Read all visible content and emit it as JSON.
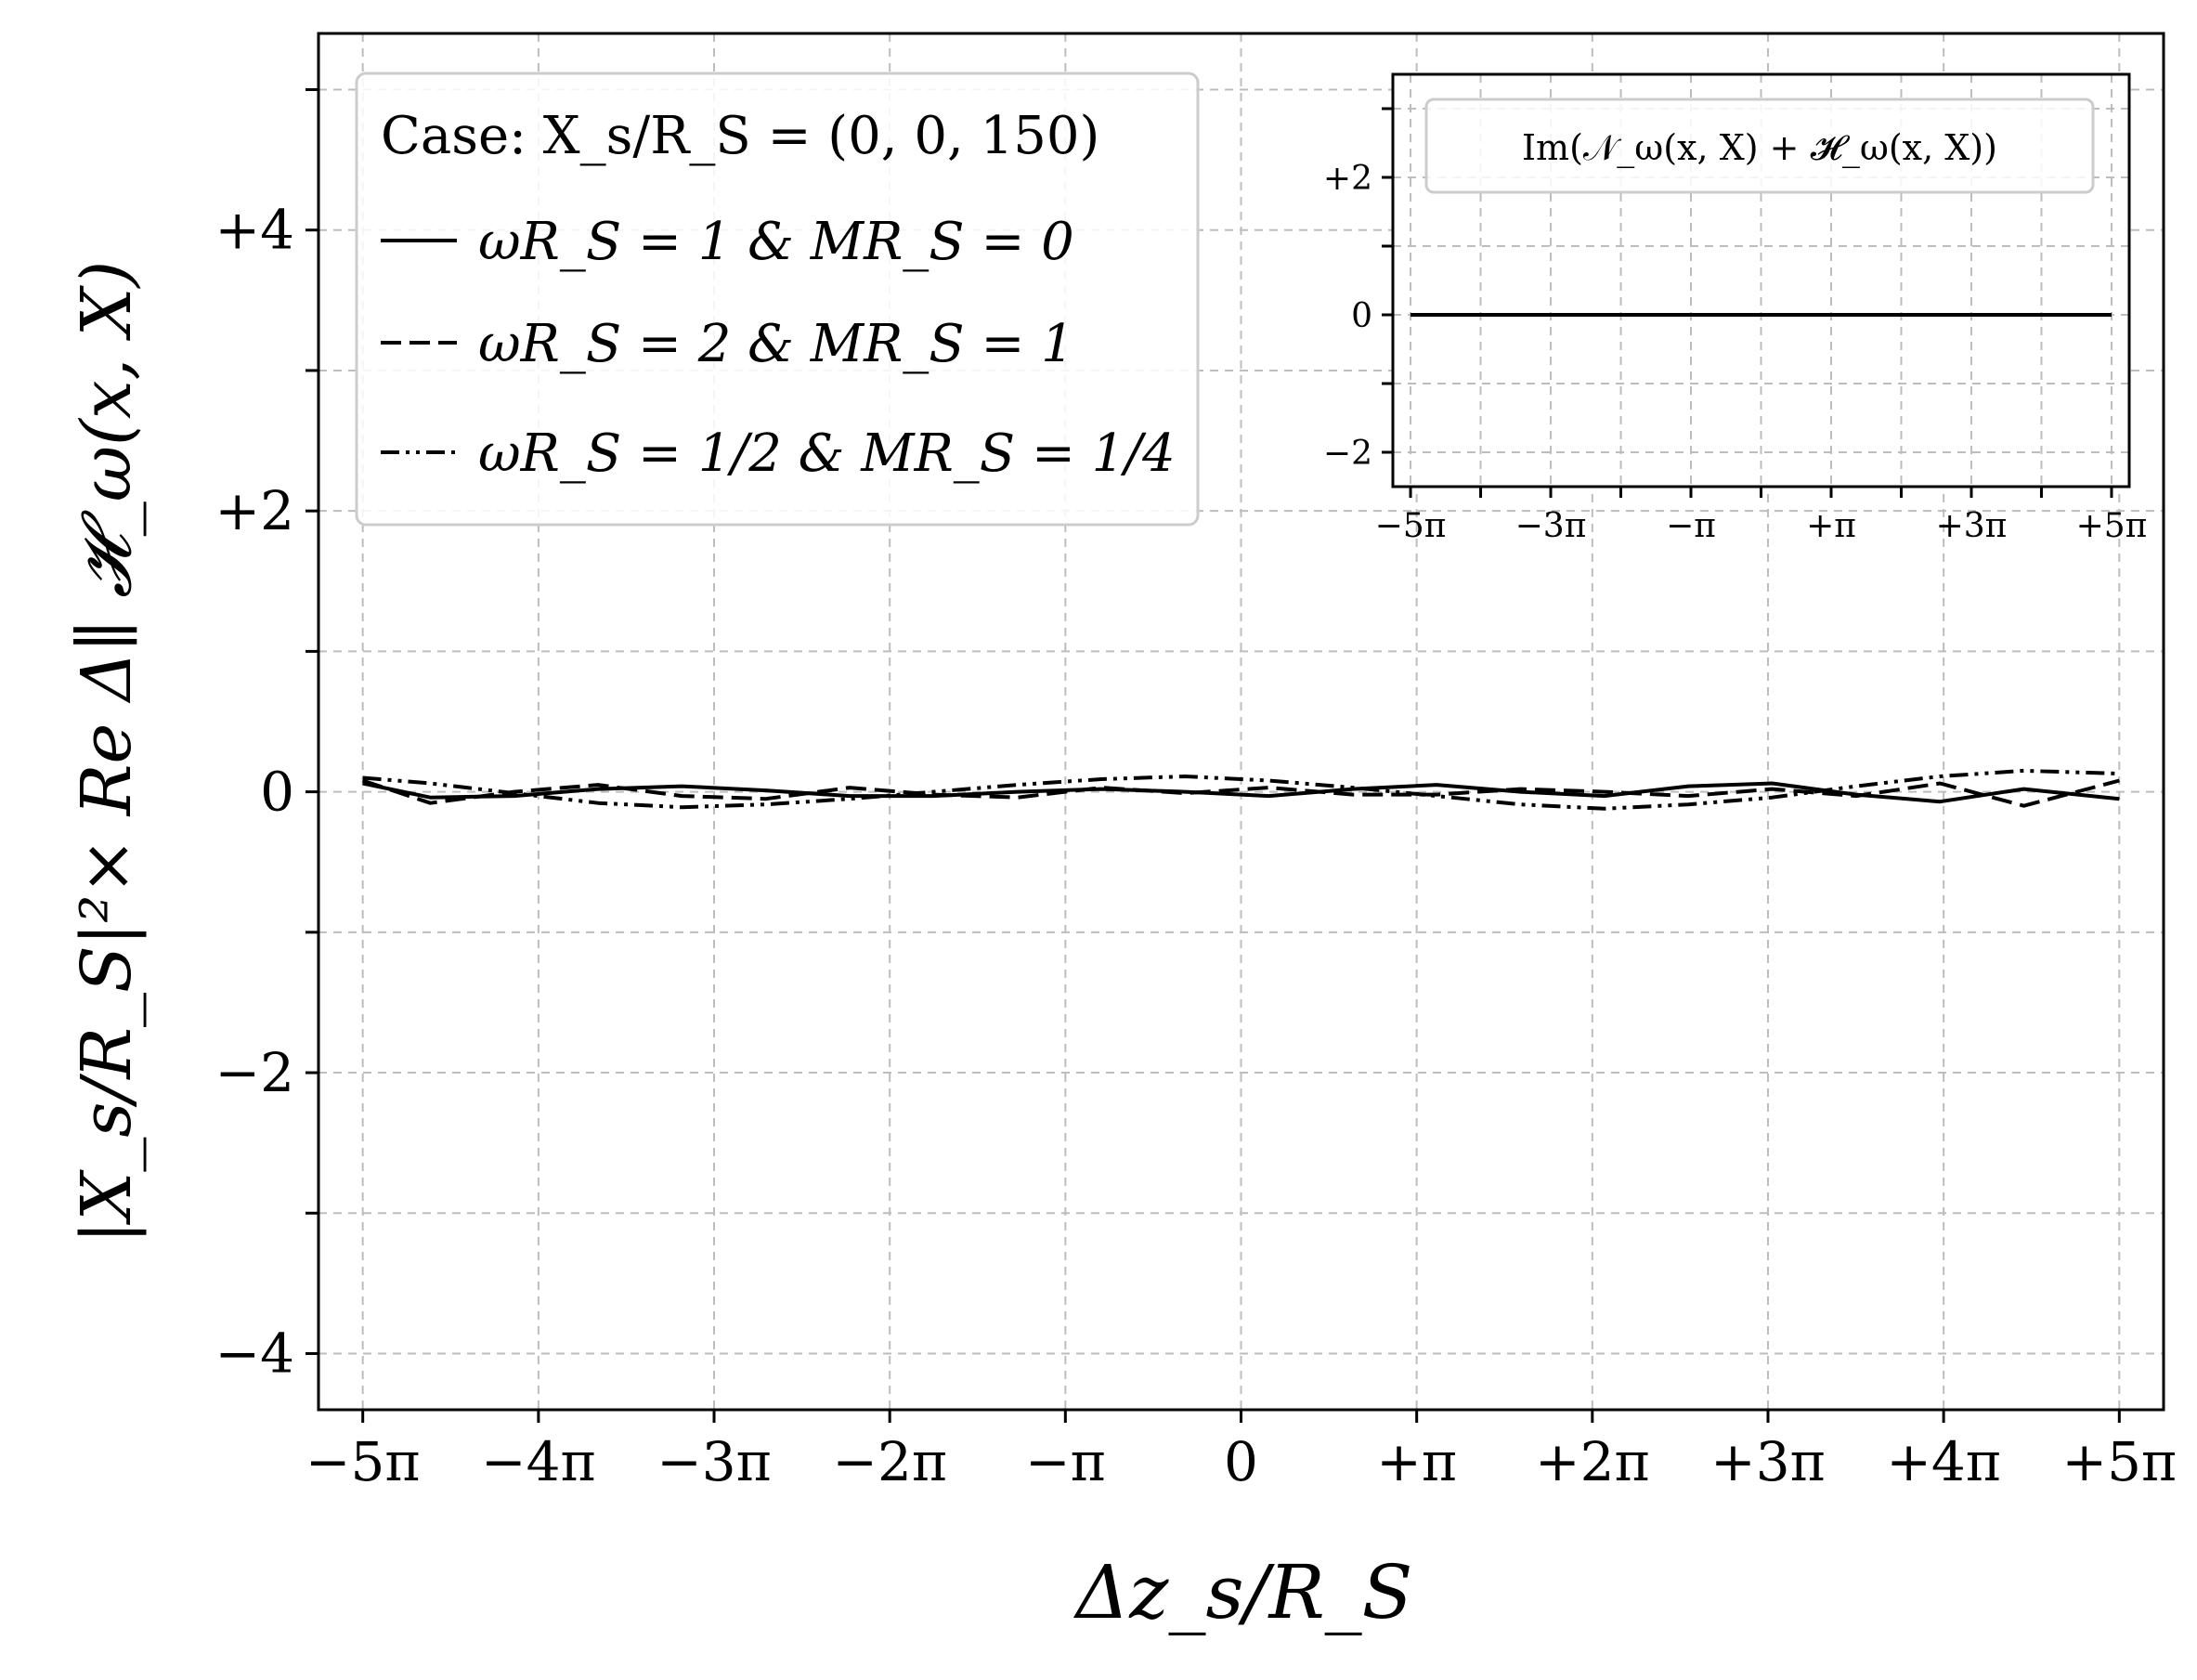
{
  "chart_data": [
    {
      "type": "line",
      "xlabel": "Δz_s/R_S",
      "ylabel": "|X_s/R_S|²× Re Δ∥ 𝓗_ω(x, X)",
      "xlim": [
        -16.5,
        16.5
      ],
      "ylim": [
        -4.4,
        5.4
      ],
      "grid": true,
      "x_ticks": [
        {
          "value": -15.708,
          "label": "−5π"
        },
        {
          "value": -12.566,
          "label": "−4π"
        },
        {
          "value": -9.425,
          "label": "−3π"
        },
        {
          "value": -6.283,
          "label": "−2π"
        },
        {
          "value": -3.1416,
          "label": "−π"
        },
        {
          "value": 0,
          "label": "0"
        },
        {
          "value": 3.1416,
          "label": "+π"
        },
        {
          "value": 6.283,
          "label": "+2π"
        },
        {
          "value": 9.425,
          "label": "+3π"
        },
        {
          "value": 12.566,
          "label": "+4π"
        },
        {
          "value": 15.708,
          "label": "+5π"
        }
      ],
      "y_ticks": [
        {
          "value": -4,
          "label": "−4"
        },
        {
          "value": -3,
          "label": ""
        },
        {
          "value": -2,
          "label": "−2"
        },
        {
          "value": -1,
          "label": ""
        },
        {
          "value": 0,
          "label": "0"
        },
        {
          "value": 1,
          "label": ""
        },
        {
          "value": 2,
          "label": "+2"
        },
        {
          "value": 3,
          "label": ""
        },
        {
          "value": 4,
          "label": "+4"
        },
        {
          "value": 5,
          "label": ""
        }
      ],
      "legend": {
        "title": "Case: X_s/R_S = (0, 0, 150)",
        "placement": "upper-left"
      },
      "series": [
        {
          "name": "ωR_S = 1 & MR_S = 0",
          "style": "solid",
          "x": [
            -15.71,
            -14.5,
            -13,
            -11.5,
            -10,
            -8.5,
            -7,
            -5.5,
            -4,
            -2.5,
            -1,
            0.5,
            2,
            3.5,
            5,
            6.5,
            8,
            9.5,
            11,
            12.5,
            14,
            15.71
          ],
          "y": [
            0.06,
            -0.04,
            -0.03,
            0.02,
            0.04,
            0.01,
            -0.03,
            -0.03,
            0.0,
            0.02,
            0.0,
            -0.03,
            0.02,
            0.05,
            0.0,
            -0.03,
            0.04,
            0.06,
            -0.02,
            -0.07,
            0.02,
            -0.05
          ]
        },
        {
          "name": "ωR_S = 2 & MR_S = 1",
          "style": "dashed",
          "x": [
            -15.71,
            -14.5,
            -13,
            -11.5,
            -10,
            -8.5,
            -7,
            -5.5,
            -4,
            -2.5,
            -1,
            0.5,
            2,
            3.5,
            5,
            6.5,
            8,
            9.5,
            11,
            12.5,
            14,
            15.71
          ],
          "y": [
            0.08,
            -0.08,
            0.0,
            0.05,
            -0.03,
            -0.05,
            0.03,
            -0.02,
            -0.04,
            0.03,
            -0.01,
            0.03,
            -0.02,
            -0.02,
            0.02,
            0.0,
            -0.03,
            0.02,
            -0.03,
            0.06,
            -0.1,
            0.08
          ]
        },
        {
          "name": "ωR_S = 1/2 & MR_S = 1/4",
          "style": "dash-dot-dot",
          "x": [
            -15.71,
            -14.5,
            -13,
            -11.5,
            -10,
            -8.5,
            -7,
            -5.5,
            -4,
            -2.5,
            -1,
            0.5,
            2,
            3.5,
            5,
            6.5,
            8,
            9.5,
            11,
            12.5,
            14,
            15.71
          ],
          "y": [
            0.1,
            0.06,
            -0.01,
            -0.08,
            -0.11,
            -0.09,
            -0.05,
            0.0,
            0.05,
            0.09,
            0.11,
            0.08,
            0.03,
            -0.03,
            -0.09,
            -0.12,
            -0.09,
            -0.04,
            0.04,
            0.11,
            0.15,
            0.13
          ]
        }
      ]
    },
    {
      "type": "line",
      "role": "inset",
      "xlim": [
        -16.5,
        16.5
      ],
      "ylim": [
        -2.5,
        3.5
      ],
      "grid": true,
      "x_ticks": [
        {
          "value": -15.708,
          "label": "−5π"
        },
        {
          "value": -12.566,
          "label": ""
        },
        {
          "value": -9.425,
          "label": "−3π"
        },
        {
          "value": -6.283,
          "label": ""
        },
        {
          "value": -3.1416,
          "label": "−π"
        },
        {
          "value": 0,
          "label": ""
        },
        {
          "value": 3.1416,
          "label": "+π"
        },
        {
          "value": 6.283,
          "label": ""
        },
        {
          "value": 9.425,
          "label": "+3π"
        },
        {
          "value": 12.566,
          "label": ""
        },
        {
          "value": 15.708,
          "label": "+5π"
        }
      ],
      "y_ticks": [
        {
          "value": -2,
          "label": "−2"
        },
        {
          "value": -1,
          "label": ""
        },
        {
          "value": 0,
          "label": "0"
        },
        {
          "value": 1,
          "label": ""
        },
        {
          "value": 2,
          "label": "+2"
        },
        {
          "value": 3,
          "label": ""
        }
      ],
      "legend": {
        "placement": "top"
      },
      "series": [
        {
          "name": "Im(𝒩_ω(x, X) + 𝓗_ω(x, X))",
          "style": "solid",
          "x": [
            -15.71,
            15.71
          ],
          "y": [
            0,
            0
          ]
        }
      ]
    }
  ]
}
